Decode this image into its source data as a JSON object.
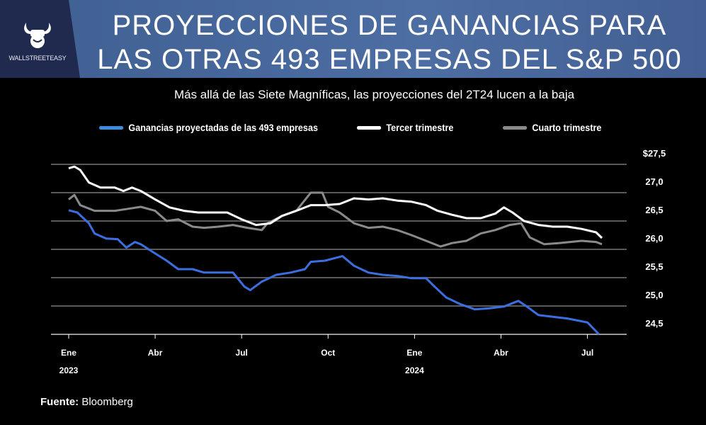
{
  "header": {
    "logo_text": "WALLSTREETEASY",
    "title_line1": "PROYECCIONES DE GANANCIAS PARA",
    "title_line2": "LAS OTRAS 493 EMPRESAS DEL S&P 500"
  },
  "source": {
    "label": "Fuente:",
    "value": "Bloomberg"
  },
  "chart_data": {
    "type": "line",
    "title": "Más allá de las Siete Magníficas, las proyecciones del 2T24 lucen a la baja",
    "xlabel": "",
    "ylabel": "",
    "ylim": [
      24.5,
      27.5
    ],
    "yticks": [
      "$27,5",
      "27,0",
      "26,5",
      "26,0",
      "25,5",
      "25,0",
      "24,5"
    ],
    "ytick_values": [
      27.5,
      27.0,
      26.5,
      26.0,
      25.5,
      25.0,
      24.5
    ],
    "xticks": [
      {
        "label": "Ene",
        "month": 0,
        "year": "2023"
      },
      {
        "label": "Abr",
        "month": 3
      },
      {
        "label": "Jul",
        "month": 6
      },
      {
        "label": "Oct",
        "month": 9
      },
      {
        "label": "Ene",
        "month": 12,
        "year": "2024"
      },
      {
        "label": "Abr",
        "month": 15
      },
      {
        "label": "Jul",
        "month": 18
      }
    ],
    "x_unit": "months since Jan 2023",
    "grid": true,
    "legend_position": "top",
    "series": [
      {
        "name": "Ganancias proyectadas de las 493 empresas",
        "color": "#3b6fe0",
        "x": [
          0,
          0.3,
          0.7,
          0.9,
          1.3,
          1.7,
          2.0,
          2.3,
          2.5,
          2.9,
          3.4,
          3.8,
          4.3,
          4.7,
          5.2,
          5.7,
          6.1,
          6.3,
          6.7,
          7.2,
          7.7,
          8.2,
          8.4,
          8.9,
          9.5,
          9.9,
          10.4,
          10.9,
          11.4,
          11.9,
          12.4,
          12.7,
          13.1,
          13.6,
          14.1,
          14.6,
          15.1,
          15.6,
          15.9,
          16.3,
          16.8,
          17.3,
          17.6,
          18.0,
          18.4
        ],
        "y": [
          26.69,
          26.65,
          26.46,
          26.28,
          26.19,
          26.18,
          26.03,
          26.13,
          26.09,
          25.96,
          25.8,
          25.65,
          25.65,
          25.59,
          25.59,
          25.59,
          25.34,
          25.28,
          25.43,
          25.55,
          25.59,
          25.65,
          25.78,
          25.8,
          25.88,
          25.71,
          25.59,
          25.55,
          25.53,
          25.49,
          25.49,
          25.34,
          25.15,
          25.03,
          24.94,
          24.96,
          24.99,
          25.09,
          24.99,
          24.84,
          24.81,
          24.78,
          24.75,
          24.71,
          24.5
        ]
      },
      {
        "name": "Tercer trimestre",
        "color": "#ffffff",
        "x": [
          0,
          0.2,
          0.4,
          0.7,
          1.1,
          1.6,
          1.9,
          2.2,
          2.5,
          3.0,
          3.5,
          4.0,
          4.5,
          5.0,
          5.5,
          6.0,
          6.5,
          7.0,
          7.4,
          7.9,
          8.4,
          8.9,
          9.4,
          9.9,
          10.4,
          10.9,
          11.4,
          11.9,
          12.4,
          12.8,
          13.3,
          13.8,
          14.3,
          14.8,
          15.1,
          15.4,
          15.8,
          16.3,
          16.8,
          17.3,
          17.8,
          18.3,
          18.5
        ],
        "y": [
          27.43,
          27.46,
          27.4,
          27.18,
          27.09,
          27.09,
          27.03,
          27.09,
          27.03,
          26.88,
          26.74,
          26.68,
          26.65,
          26.65,
          26.65,
          26.53,
          26.43,
          26.46,
          26.59,
          26.68,
          26.78,
          26.78,
          26.8,
          26.9,
          26.88,
          26.9,
          26.86,
          26.84,
          26.78,
          26.68,
          26.61,
          26.55,
          26.55,
          26.63,
          26.74,
          26.65,
          26.5,
          26.43,
          26.4,
          26.4,
          26.36,
          26.3,
          26.2
        ]
      },
      {
        "name": "Cuarto trimestre",
        "color": "#8a8a8a",
        "x": [
          0,
          0.2,
          0.4,
          0.9,
          1.6,
          2.0,
          2.5,
          3.0,
          3.4,
          3.8,
          4.3,
          4.7,
          5.2,
          5.7,
          6.2,
          6.7,
          6.9,
          7.4,
          7.9,
          8.4,
          8.8,
          9.0,
          9.4,
          9.9,
          10.4,
          10.9,
          11.4,
          11.9,
          12.4,
          12.9,
          13.3,
          13.8,
          14.3,
          14.8,
          15.3,
          15.7,
          16.0,
          16.5,
          17.0,
          17.8,
          18.3,
          18.5
        ],
        "y": [
          26.88,
          26.96,
          26.78,
          26.68,
          26.68,
          26.71,
          26.75,
          26.68,
          26.5,
          26.53,
          26.4,
          26.38,
          26.4,
          26.43,
          26.38,
          26.34,
          26.46,
          26.59,
          26.68,
          27.0,
          27.0,
          26.75,
          26.65,
          26.46,
          26.38,
          26.4,
          26.34,
          26.25,
          26.15,
          26.05,
          26.11,
          26.15,
          26.28,
          26.34,
          26.43,
          26.46,
          26.21,
          26.09,
          26.11,
          26.15,
          26.13,
          26.09
        ]
      }
    ]
  }
}
